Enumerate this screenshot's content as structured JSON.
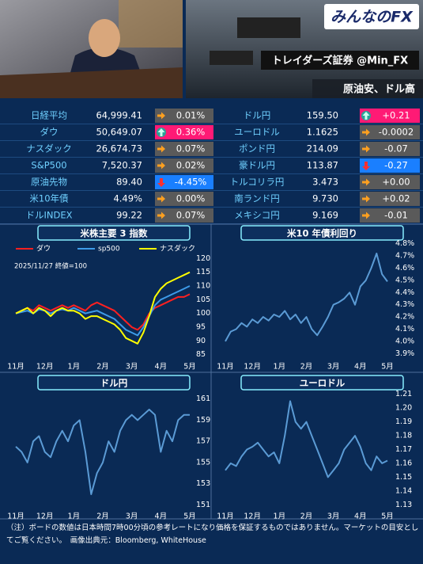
{
  "header": {
    "logo": "みんなのFX",
    "banner": "トレイダーズ証券 @Min_FX",
    "headline": "原油安、ドル高"
  },
  "market_table": {
    "rows": [
      {
        "left": {
          "name": "日経平均",
          "value": "64,999.41",
          "change": "0.01%",
          "arrow": "flat",
          "bg": "#5a5a5a"
        },
        "right": {
          "name": "ドル円",
          "value": "159.50",
          "change": "+0.21",
          "arrow": "up",
          "bg": "#ff1a75"
        }
      },
      {
        "left": {
          "name": "ダウ",
          "value": "50,649.07",
          "change": "0.36%",
          "arrow": "up",
          "bg": "#ff1a75"
        },
        "right": {
          "name": "ユーロドル",
          "value": "1.1625",
          "change": "-0.0002",
          "arrow": "flat",
          "bg": "#5a5a5a"
        }
      },
      {
        "left": {
          "name": "ナスダック",
          "value": "26,674.73",
          "change": "0.07%",
          "arrow": "flat",
          "bg": "#5a5a5a"
        },
        "right": {
          "name": "ポンド円",
          "value": "214.09",
          "change": "-0.07",
          "arrow": "flat",
          "bg": "#5a5a5a"
        }
      },
      {
        "left": {
          "name": "S&P500",
          "value": "7,520.37",
          "change": "0.02%",
          "arrow": "flat",
          "bg": "#5a5a5a"
        },
        "right": {
          "name": "豪ドル円",
          "value": "113.87",
          "change": "-0.27",
          "arrow": "down",
          "bg": "#1a7fff"
        }
      },
      {
        "left": {
          "name": "原油先物",
          "value": "89.40",
          "change": "-4.45%",
          "arrow": "down",
          "bg": "#1a7fff"
        },
        "right": {
          "name": "トルコリラ円",
          "value": "3.473",
          "change": "+0.00",
          "arrow": "flat",
          "bg": "#5a5a5a"
        }
      },
      {
        "left": {
          "name": "米10年債",
          "value": "4.49%",
          "change": "0.00%",
          "arrow": "flat",
          "bg": "#5a5a5a"
        },
        "right": {
          "name": "南ランド円",
          "value": "9.730",
          "change": "+0.02",
          "arrow": "flat",
          "bg": "#5a5a5a"
        }
      },
      {
        "left": {
          "name": "ドルINDEX",
          "value": "99.22",
          "change": "0.07%",
          "arrow": "flat",
          "bg": "#5a5a5a"
        },
        "right": {
          "name": "メキシコ円",
          "value": "9.169",
          "change": "-0.01",
          "arrow": "flat",
          "bg": "#5a5a5a"
        }
      }
    ]
  },
  "chart_data": [
    {
      "type": "line",
      "title": "米株主要 3 指数",
      "annotation": "2025/11/27 終値=100",
      "categories": [
        "11月",
        null,
        null,
        null,
        null,
        "12月",
        null,
        null,
        null,
        null,
        "1月",
        null,
        null,
        null,
        null,
        "2月",
        null,
        null,
        null,
        null,
        "3月",
        null,
        null,
        null,
        null,
        "4月",
        null,
        null,
        null,
        null,
        "5月"
      ],
      "series": [
        {
          "name": "ダウ",
          "color": "#ff2020",
          "values": [
            100,
            101,
            102,
            101,
            103,
            102,
            101,
            102,
            103,
            102,
            103,
            102,
            101,
            103,
            104,
            103,
            102,
            101,
            99,
            97,
            95,
            94,
            96,
            100,
            102,
            103,
            104,
            105,
            106,
            106,
            107
          ]
        },
        {
          "name": "sp500",
          "color": "#3d9be9",
          "values": [
            100,
            100.5,
            101,
            100,
            101.5,
            101,
            100,
            101,
            101.5,
            101,
            102,
            101,
            100,
            100.5,
            101,
            100,
            99,
            98,
            96,
            94,
            93,
            92,
            95,
            99,
            103,
            105,
            106,
            107,
            108,
            109,
            110
          ]
        },
        {
          "name": "ナスダック",
          "color": "#ffff00",
          "values": [
            100,
            101,
            102,
            100,
            102,
            101,
            99,
            101,
            102,
            101,
            101,
            100,
            98,
            99,
            99,
            98,
            97,
            96,
            94,
            91,
            90,
            89,
            93,
            99,
            106,
            109,
            111,
            112,
            113,
            114,
            115
          ]
        }
      ],
      "ylim": [
        82,
        123
      ],
      "yticks": [
        85,
        90,
        95,
        100,
        105,
        110,
        115,
        120
      ],
      "grid": false,
      "legend": "top-left"
    },
    {
      "type": "line",
      "title": "米10 年債利回り",
      "color": "#5b9bd5",
      "categories": [
        "11月",
        null,
        null,
        null,
        null,
        "12月",
        null,
        null,
        null,
        null,
        "1月",
        null,
        null,
        null,
        null,
        "2月",
        null,
        null,
        null,
        null,
        "3月",
        null,
        null,
        null,
        null,
        "4月",
        null,
        null,
        null,
        null,
        "5月"
      ],
      "values": [
        4.0,
        4.08,
        4.1,
        4.15,
        4.12,
        4.18,
        4.15,
        4.2,
        4.17,
        4.22,
        4.2,
        4.25,
        4.18,
        4.22,
        4.15,
        4.2,
        4.1,
        4.05,
        4.12,
        4.2,
        4.3,
        4.32,
        4.35,
        4.4,
        4.3,
        4.45,
        4.5,
        4.6,
        4.72,
        4.55,
        4.49
      ],
      "ylim": [
        3.85,
        4.85
      ],
      "yticks": [
        {
          "value": 3.9,
          "label": "3.9%"
        },
        {
          "value": 4.0,
          "label": "4.0%"
        },
        {
          "value": 4.1,
          "label": "4.1%"
        },
        {
          "value": 4.2,
          "label": "4.2%"
        },
        {
          "value": 4.3,
          "label": "4.3%"
        },
        {
          "value": 4.4,
          "label": "4.4%"
        },
        {
          "value": 4.5,
          "label": "4.5%"
        },
        {
          "value": 4.6,
          "label": "4.6%"
        },
        {
          "value": 4.7,
          "label": "4.7%"
        },
        {
          "value": 4.8,
          "label": "4.8%"
        }
      ],
      "grid": false
    },
    {
      "type": "line",
      "title": "ドル円",
      "color": "#5b9bd5",
      "categories": [
        "11月",
        null,
        null,
        null,
        null,
        "12月",
        null,
        null,
        null,
        null,
        "1月",
        null,
        null,
        null,
        null,
        "2月",
        null,
        null,
        null,
        null,
        "3月",
        null,
        null,
        null,
        null,
        "4月",
        null,
        null,
        null,
        null,
        "5月"
      ],
      "values": [
        156.5,
        156,
        155,
        157,
        157.5,
        156,
        155.5,
        157,
        158,
        157,
        158.5,
        159,
        156,
        152,
        154,
        155,
        157,
        156,
        158,
        159,
        159.5,
        159,
        159.5,
        160,
        159.5,
        156,
        158,
        157,
        159,
        159.5,
        159.5
      ],
      "ylim": [
        150.5,
        161.5
      ],
      "yticks": [
        151,
        153,
        155,
        157,
        159,
        161
      ],
      "grid": false
    },
    {
      "type": "line",
      "title": "ユーロドル",
      "color": "#5b9bd5",
      "categories": [
        "11月",
        null,
        null,
        null,
        null,
        "12月",
        null,
        null,
        null,
        null,
        "1月",
        null,
        null,
        null,
        null,
        "2月",
        null,
        null,
        null,
        null,
        "3月",
        null,
        null,
        null,
        null,
        "4月",
        null,
        null,
        null,
        null,
        "5月"
      ],
      "values": [
        1.155,
        1.16,
        1.158,
        1.165,
        1.17,
        1.172,
        1.175,
        1.17,
        1.165,
        1.168,
        1.16,
        1.18,
        1.205,
        1.19,
        1.185,
        1.19,
        1.18,
        1.17,
        1.16,
        1.15,
        1.155,
        1.16,
        1.17,
        1.175,
        1.18,
        1.172,
        1.16,
        1.155,
        1.165,
        1.16,
        1.162
      ],
      "ylim": [
        1.125,
        1.215
      ],
      "yticks": [
        1.13,
        1.14,
        1.15,
        1.16,
        1.17,
        1.18,
        1.19,
        {
          "value": 1.2,
          "label": "1.20"
        },
        1.21
      ],
      "grid": false
    }
  ],
  "footer": "（注）ボードの数値は日本時間7時00分頃の参考レートになり価格を保証するものではありません。マーケットの目安としてご覧ください。　画像出典元：Bloomberg, WhiteHouse"
}
